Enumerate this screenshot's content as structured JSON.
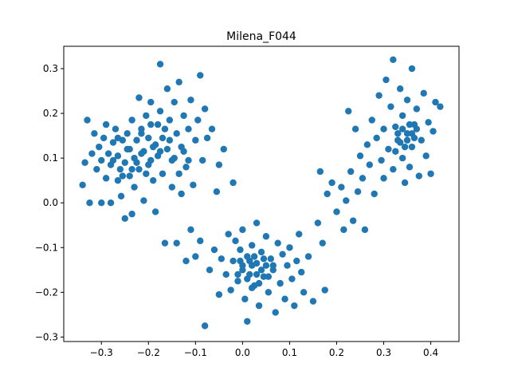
{
  "chart_data": {
    "type": "scatter",
    "title": "Milena_F044",
    "xlabel": "",
    "ylabel": "",
    "xlim": [
      -0.38,
      0.46
    ],
    "ylim": [
      -0.31,
      0.35
    ],
    "xticks": [
      -0.3,
      -0.2,
      -0.1,
      0.0,
      0.1,
      0.2,
      0.3,
      0.4
    ],
    "xtick_labels": [
      "−0.3",
      "−0.2",
      "−0.1",
      "0.0",
      "0.1",
      "0.2",
      "0.3",
      "0.4"
    ],
    "yticks": [
      -0.3,
      -0.2,
      -0.1,
      0.0,
      0.1,
      0.2,
      0.3
    ],
    "ytick_labels": [
      "−0.3",
      "−0.2",
      "−0.1",
      "0.0",
      "0.1",
      "0.2",
      "0.3"
    ],
    "grid": false,
    "color": "#1f77b4",
    "points": [
      [
        -0.34,
        0.04
      ],
      [
        -0.335,
        0.09
      ],
      [
        -0.33,
        0.185
      ],
      [
        -0.325,
        0.0
      ],
      [
        -0.32,
        0.11
      ],
      [
        -0.315,
        0.155
      ],
      [
        -0.31,
        0.075
      ],
      [
        -0.305,
        0.125
      ],
      [
        -0.3,
        0.0
      ],
      [
        -0.3,
        0.095
      ],
      [
        -0.295,
        0.145
      ],
      [
        -0.29,
        0.055
      ],
      [
        -0.29,
        0.175
      ],
      [
        -0.285,
        0.11
      ],
      [
        -0.28,
        0.0
      ],
      [
        -0.28,
        0.085
      ],
      [
        -0.275,
        0.135
      ],
      [
        -0.27,
        0.165
      ],
      [
        -0.265,
        0.05
      ],
      [
        -0.265,
        0.105
      ],
      [
        -0.26,
        0.075
      ],
      [
        -0.258,
        0.015
      ],
      [
        -0.255,
        0.14
      ],
      [
        -0.25,
        0.09
      ],
      [
        -0.25,
        -0.035
      ],
      [
        -0.245,
        0.155
      ],
      [
        -0.24,
        0.06
      ],
      [
        -0.24,
        0.12
      ],
      [
        -0.235,
        -0.025
      ],
      [
        -0.235,
        0.185
      ],
      [
        -0.23,
        0.1
      ],
      [
        -0.23,
        0.035
      ],
      [
        -0.225,
        0.14
      ],
      [
        -0.22,
        0.075
      ],
      [
        -0.22,
        0.235
      ],
      [
        -0.215,
        0.165
      ],
      [
        -0.21,
        0.115
      ],
      [
        -0.21,
        0.005
      ],
      [
        -0.205,
        0.195
      ],
      [
        -0.2,
        0.085
      ],
      [
        -0.2,
        0.145
      ],
      [
        -0.195,
        0.225
      ],
      [
        -0.19,
        0.125
      ],
      [
        -0.19,
        0.05
      ],
      [
        -0.185,
        -0.02
      ],
      [
        -0.18,
        0.175
      ],
      [
        -0.18,
        0.105
      ],
      [
        -0.175,
        0.31
      ],
      [
        -0.175,
        0.205
      ],
      [
        -0.17,
        0.145
      ],
      [
        -0.17,
        0.065
      ],
      [
        -0.165,
        -0.09
      ],
      [
        -0.16,
        0.255
      ],
      [
        -0.16,
        0.12
      ],
      [
        -0.155,
        0.185
      ],
      [
        -0.15,
        0.035
      ],
      [
        -0.15,
        0.095
      ],
      [
        -0.145,
        0.225
      ],
      [
        -0.14,
        0.155
      ],
      [
        -0.14,
        -0.09
      ],
      [
        -0.135,
        0.27
      ],
      [
        -0.13,
        0.125
      ],
      [
        -0.13,
        0.02
      ],
      [
        -0.125,
        0.195
      ],
      [
        -0.12,
        -0.13
      ],
      [
        -0.12,
        0.08
      ],
      [
        -0.115,
        0.165
      ],
      [
        -0.11,
        0.23
      ],
      [
        -0.11,
        -0.06
      ],
      [
        -0.105,
        0.04
      ],
      [
        -0.1,
        0.14
      ],
      [
        -0.1,
        -0.12
      ],
      [
        -0.095,
        0.185
      ],
      [
        -0.09,
        0.285
      ],
      [
        -0.09,
        -0.085
      ],
      [
        -0.085,
        0.095
      ],
      [
        -0.08,
        0.21
      ],
      [
        -0.08,
        -0.275
      ],
      [
        -0.075,
        0.145
      ],
      [
        -0.07,
        -0.15
      ],
      [
        -0.065,
        0.165
      ],
      [
        -0.06,
        -0.105
      ],
      [
        -0.055,
        0.025
      ],
      [
        -0.05,
        -0.205
      ],
      [
        -0.05,
        0.085
      ],
      [
        -0.045,
        -0.125
      ],
      [
        -0.04,
        0.12
      ],
      [
        -0.035,
        -0.16
      ],
      [
        -0.03,
        -0.07
      ],
      [
        -0.025,
        -0.195
      ],
      [
        -0.02,
        0.045
      ],
      [
        -0.02,
        -0.13
      ],
      [
        -0.015,
        -0.085
      ],
      [
        -0.01,
        -0.175
      ],
      [
        -0.005,
        -0.105
      ],
      [
        0.0,
        -0.14
      ],
      [
        0.0,
        -0.06
      ],
      [
        0.005,
        -0.215
      ],
      [
        0.01,
        -0.12
      ],
      [
        0.01,
        -0.265
      ],
      [
        0.015,
        -0.16
      ],
      [
        0.02,
        -0.095
      ],
      [
        0.025,
        -0.185
      ],
      [
        0.03,
        -0.135
      ],
      [
        0.03,
        -0.045
      ],
      [
        0.035,
        -0.23
      ],
      [
        0.04,
        -0.11
      ],
      [
        0.045,
        -0.165
      ],
      [
        0.05,
        -0.075
      ],
      [
        0.055,
        -0.2
      ],
      [
        0.06,
        -0.125
      ],
      [
        0.065,
        -0.15
      ],
      [
        0.07,
        -0.245
      ],
      [
        0.075,
        -0.09
      ],
      [
        0.08,
        -0.18
      ],
      [
        0.085,
        -0.115
      ],
      [
        0.09,
        -0.215
      ],
      [
        0.095,
        -0.14
      ],
      [
        0.1,
        -0.1
      ],
      [
        0.105,
        -0.17
      ],
      [
        0.11,
        -0.23
      ],
      [
        0.115,
        -0.13
      ],
      [
        0.12,
        -0.07
      ],
      [
        0.125,
        -0.155
      ],
      [
        0.13,
        -0.2
      ],
      [
        0.14,
        -0.12
      ],
      [
        0.15,
        -0.22
      ],
      [
        0.16,
        -0.045
      ],
      [
        0.165,
        0.07
      ],
      [
        0.17,
        -0.09
      ],
      [
        0.175,
        -0.195
      ],
      [
        0.18,
        0.02
      ],
      [
        0.19,
        0.045
      ],
      [
        0.2,
        -0.02
      ],
      [
        0.21,
        0.035
      ],
      [
        0.215,
        -0.06
      ],
      [
        0.22,
        0.005
      ],
      [
        0.225,
        0.205
      ],
      [
        0.23,
        0.07
      ],
      [
        0.235,
        -0.04
      ],
      [
        0.24,
        0.165
      ],
      [
        0.245,
        0.025
      ],
      [
        0.25,
        0.105
      ],
      [
        0.255,
        0.055
      ],
      [
        0.26,
        -0.06
      ],
      [
        0.265,
        0.13
      ],
      [
        0.27,
        0.085
      ],
      [
        0.275,
        0.185
      ],
      [
        0.28,
        0.02
      ],
      [
        0.285,
        0.145
      ],
      [
        0.29,
        0.24
      ],
      [
        0.295,
        0.095
      ],
      [
        0.3,
        0.055
      ],
      [
        0.3,
        0.165
      ],
      [
        0.305,
        0.275
      ],
      [
        0.31,
        0.12
      ],
      [
        0.315,
        0.215
      ],
      [
        0.32,
        0.075
      ],
      [
        0.32,
        0.32
      ],
      [
        0.325,
        0.17
      ],
      [
        0.33,
        0.14
      ],
      [
        0.335,
        0.255
      ],
      [
        0.34,
        0.1
      ],
      [
        0.34,
        0.195
      ],
      [
        0.345,
        0.045
      ],
      [
        0.35,
        0.155
      ],
      [
        0.35,
        0.23
      ],
      [
        0.355,
        0.08
      ],
      [
        0.36,
        0.125
      ],
      [
        0.36,
        0.3
      ],
      [
        0.365,
        0.175
      ],
      [
        0.37,
        0.21
      ],
      [
        0.375,
        0.06
      ],
      [
        0.38,
        0.14
      ],
      [
        0.385,
        0.245
      ],
      [
        0.39,
        0.105
      ],
      [
        0.395,
        0.18
      ],
      [
        0.4,
        0.065
      ],
      [
        0.405,
        0.16
      ],
      [
        0.41,
        0.225
      ],
      [
        0.42,
        0.215
      ],
      [
        -0.215,
        0.11
      ],
      [
        -0.205,
        0.065
      ],
      [
        -0.195,
        0.175
      ],
      [
        -0.185,
        0.13
      ],
      [
        -0.225,
        0.09
      ],
      [
        -0.245,
        0.12
      ],
      [
        -0.265,
        0.145
      ],
      [
        -0.275,
        0.095
      ],
      [
        -0.255,
        0.06
      ],
      [
        -0.235,
        0.075
      ],
      [
        -0.215,
        0.155
      ],
      [
        -0.195,
        0.095
      ],
      [
        -0.175,
        0.115
      ],
      [
        -0.155,
        0.14
      ],
      [
        -0.145,
        0.1
      ],
      [
        -0.165,
        0.165
      ],
      [
        -0.125,
        0.115
      ],
      [
        -0.135,
        0.065
      ],
      [
        -0.115,
        0.095
      ],
      [
        0.0,
        -0.15
      ],
      [
        0.01,
        -0.17
      ],
      [
        0.02,
        -0.14
      ],
      [
        0.03,
        -0.16
      ],
      [
        0.04,
        -0.15
      ],
      [
        0.05,
        -0.14
      ],
      [
        0.015,
        -0.13
      ],
      [
        0.025,
        -0.12
      ],
      [
        -0.01,
        -0.16
      ],
      [
        0.035,
        -0.18
      ],
      [
        0.045,
        -0.125
      ],
      [
        0.055,
        -0.165
      ],
      [
        -0.005,
        -0.13
      ],
      [
        0.065,
        -0.14
      ],
      [
        0.02,
        -0.19
      ],
      [
        0.33,
        0.155
      ],
      [
        0.34,
        0.165
      ],
      [
        0.35,
        0.14
      ],
      [
        0.36,
        0.155
      ],
      [
        0.345,
        0.125
      ],
      [
        0.355,
        0.175
      ],
      [
        0.335,
        0.135
      ],
      [
        0.365,
        0.145
      ],
      [
        0.325,
        0.115
      ],
      [
        0.37,
        0.165
      ]
    ]
  }
}
